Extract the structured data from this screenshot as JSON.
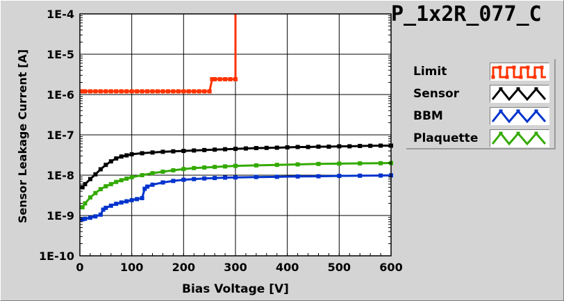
{
  "title": "P_1x2R_077_C",
  "colors": {
    "background": "#d4d4d4",
    "plot_background": "#ffffff",
    "grid": "#000000",
    "limit": "#ff3300",
    "sensor": "#000000",
    "bbm": "#0033cc",
    "plaquette": "#33aa00"
  },
  "legend": [
    {
      "label": "Limit",
      "color": "#ff3300",
      "swatch": "square-wave"
    },
    {
      "label": "Sensor",
      "color": "#000000",
      "swatch": "zigzag"
    },
    {
      "label": "BBM",
      "color": "#0033cc",
      "swatch": "zigzag"
    },
    {
      "label": "Plaquette",
      "color": "#33aa00",
      "swatch": "zigzag"
    }
  ],
  "chart_data": {
    "type": "line",
    "title": "P_1x2R_077_C",
    "xlabel": "Bias Voltage [V]",
    "ylabel": "Sensor Leakage Current [A]",
    "xlim": [
      0,
      600
    ],
    "ylim": [
      1e-10,
      0.0001
    ],
    "yscale": "log",
    "grid": true,
    "legend_position": "right",
    "x_ticks": [
      "0",
      "100",
      "200",
      "300",
      "400",
      "500",
      "600"
    ],
    "y_ticks": [
      "1E-10",
      "1E-9",
      "1E-8",
      "1E-7",
      "1E-6",
      "1E-5",
      "1E-4"
    ],
    "series": [
      {
        "name": "Limit",
        "color": "#ff3300",
        "x": [
          5,
          10,
          20,
          30,
          40,
          50,
          60,
          70,
          80,
          90,
          100,
          110,
          120,
          130,
          140,
          150,
          160,
          170,
          180,
          190,
          200,
          210,
          220,
          230,
          240,
          250,
          255,
          260,
          270,
          280,
          290,
          300,
          300
        ],
        "y": [
          1.2e-06,
          1.2e-06,
          1.2e-06,
          1.2e-06,
          1.2e-06,
          1.2e-06,
          1.2e-06,
          1.2e-06,
          1.2e-06,
          1.2e-06,
          1.2e-06,
          1.2e-06,
          1.2e-06,
          1.2e-06,
          1.2e-06,
          1.2e-06,
          1.2e-06,
          1.2e-06,
          1.2e-06,
          1.2e-06,
          1.2e-06,
          1.2e-06,
          1.2e-06,
          1.2e-06,
          1.2e-06,
          1.2e-06,
          2.4e-06,
          2.4e-06,
          2.4e-06,
          2.4e-06,
          2.4e-06,
          2.4e-06,
          0.0001
        ]
      },
      {
        "name": "Sensor",
        "color": "#000000",
        "x": [
          5,
          10,
          20,
          30,
          40,
          50,
          60,
          70,
          80,
          90,
          100,
          120,
          140,
          160,
          180,
          200,
          220,
          240,
          260,
          280,
          300,
          320,
          340,
          360,
          380,
          400,
          420,
          440,
          460,
          480,
          500,
          520,
          540,
          560,
          580,
          600
        ],
        "y": [
          5e-09,
          6e-09,
          8e-09,
          1.05e-08,
          1.4e-08,
          1.8e-08,
          2.2e-08,
          2.6e-08,
          2.9e-08,
          3.1e-08,
          3.3e-08,
          3.5e-08,
          3.65e-08,
          3.8e-08,
          3.9e-08,
          4e-08,
          4.1e-08,
          4.2e-08,
          4.3e-08,
          4.4e-08,
          4.5e-08,
          4.6e-08,
          4.7e-08,
          4.75e-08,
          4.8e-08,
          4.9e-08,
          5e-08,
          5e-08,
          5.1e-08,
          5.1e-08,
          5.2e-08,
          5.2e-08,
          5.3e-08,
          5.35e-08,
          5.4e-08,
          5.4e-08
        ]
      },
      {
        "name": "BBM",
        "color": "#0033cc",
        "x": [
          5,
          10,
          20,
          30,
          40,
          45,
          50,
          60,
          70,
          80,
          90,
          100,
          110,
          120,
          125,
          130,
          140,
          160,
          180,
          200,
          220,
          240,
          260,
          280,
          300,
          340,
          380,
          420,
          460,
          500,
          540,
          580,
          600
        ],
        "y": [
          8e-10,
          8.3e-10,
          8.8e-10,
          9.5e-10,
          1.05e-09,
          1.4e-09,
          1.55e-09,
          1.75e-09,
          1.95e-09,
          2.1e-09,
          2.25e-09,
          2.4e-09,
          2.55e-09,
          2.7e-09,
          4.6e-09,
          5.2e-09,
          5.8e-09,
          6.6e-09,
          7.2e-09,
          7.7e-09,
          8e-09,
          8.3e-09,
          8.5e-09,
          8.7e-09,
          8.8e-09,
          9e-09,
          9.1e-09,
          9.3e-09,
          9.4e-09,
          9.6e-09,
          9.7e-09,
          9.8e-09,
          9.9e-09
        ]
      },
      {
        "name": "Plaquette",
        "color": "#33aa00",
        "x": [
          5,
          10,
          20,
          30,
          40,
          50,
          60,
          70,
          80,
          90,
          100,
          120,
          140,
          160,
          180,
          200,
          220,
          240,
          260,
          280,
          300,
          340,
          380,
          420,
          460,
          500,
          540,
          580,
          600
        ],
        "y": [
          1.6e-09,
          2e-09,
          2.8e-09,
          3.6e-09,
          4.5e-09,
          5.3e-09,
          6e-09,
          6.8e-09,
          7.5e-09,
          8.2e-09,
          8.9e-09,
          1e-08,
          1.12e-08,
          1.22e-08,
          1.32e-08,
          1.42e-08,
          1.5e-08,
          1.55e-08,
          1.6e-08,
          1.65e-08,
          1.7e-08,
          1.75e-08,
          1.8e-08,
          1.85e-08,
          1.9e-08,
          1.93e-08,
          1.96e-08,
          1.98e-08,
          2e-08
        ]
      }
    ]
  }
}
